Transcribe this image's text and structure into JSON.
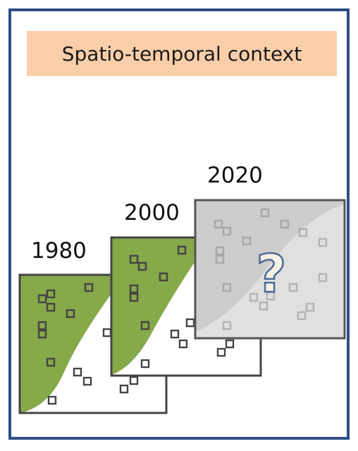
{
  "title": "Spatio-temporal context",
  "years": [
    "1980",
    "2000",
    "2020"
  ],
  "unknown_mark": "?",
  "colors": {
    "border": "#2e4d8a",
    "title_bg": "#f9cea9",
    "vegetation": "#86a94a",
    "unknown_overlay": "#b9b9b9",
    "question_fill": "#f7f1e3",
    "question_stroke": "#4a6a9a"
  }
}
